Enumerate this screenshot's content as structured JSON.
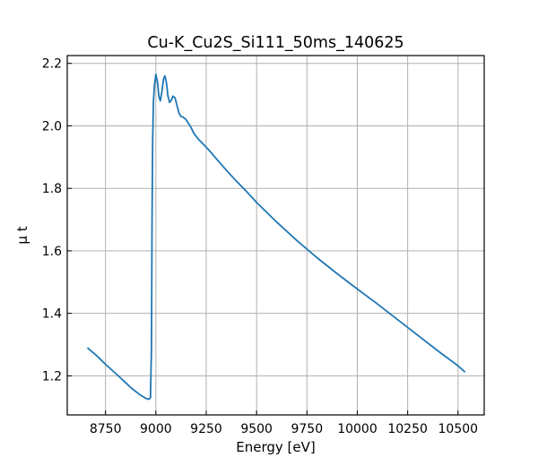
{
  "chart_data": {
    "type": "line",
    "title": "Cu-K_Cu2S_Si111_50ms_140625",
    "xlabel": "Energy [eV]",
    "ylabel": "μ t",
    "xlim": [
      8560,
      10630
    ],
    "ylim": [
      1.075,
      2.225
    ],
    "xticks": [
      8750,
      9000,
      9250,
      9500,
      9750,
      10000,
      10250,
      10500
    ],
    "yticks": [
      1.2,
      1.4,
      1.6,
      1.8,
      2.0,
      2.2
    ],
    "ytick_labels": [
      "1.2",
      "1.4",
      "1.6",
      "1.8",
      "2.0",
      "2.2"
    ],
    "grid": true,
    "series": [
      {
        "color": "#1f77b4",
        "x": [
          8660,
          8700,
          8750,
          8800,
          8850,
          8880,
          8920,
          8950,
          8965,
          8973,
          8978,
          8981,
          8984,
          8988,
          8993,
          9000,
          9008,
          9015,
          9022,
          9030,
          9038,
          9045,
          9052,
          9060,
          9068,
          9075,
          9085,
          9095,
          9105,
          9115,
          9125,
          9135,
          9150,
          9170,
          9190,
          9210,
          9230,
          9260,
          9300,
          9350,
          9400,
          9450,
          9500,
          9600,
          9700,
          9800,
          9900,
          10000,
          10100,
          10200,
          10300,
          10400,
          10500,
          10535
        ],
        "y": [
          1.29,
          1.268,
          1.237,
          1.208,
          1.178,
          1.16,
          1.14,
          1.128,
          1.125,
          1.13,
          1.28,
          1.7,
          1.95,
          2.08,
          2.13,
          2.165,
          2.14,
          2.095,
          2.08,
          2.11,
          2.15,
          2.16,
          2.14,
          2.095,
          2.075,
          2.08,
          2.095,
          2.09,
          2.065,
          2.04,
          2.03,
          2.028,
          2.02,
          2.0,
          1.975,
          1.958,
          1.945,
          1.925,
          1.895,
          1.858,
          1.823,
          1.79,
          1.755,
          1.692,
          1.633,
          1.578,
          1.527,
          1.478,
          1.43,
          1.38,
          1.33,
          1.28,
          1.232,
          1.212
        ]
      }
    ]
  }
}
